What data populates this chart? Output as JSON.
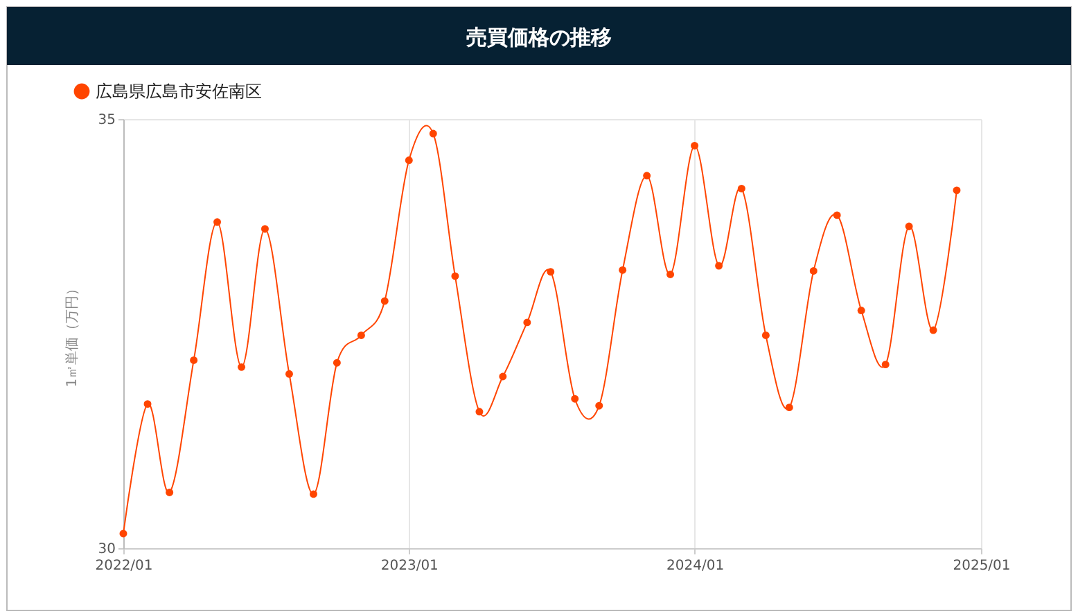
{
  "chart_data": {
    "type": "line",
    "title": "売買価格の推移",
    "ylabel": "1㎡単価（万円）",
    "x": [
      "2022-01",
      "2022-02",
      "2022-03",
      "2022-04",
      "2022-05",
      "2022-06",
      "2022-07",
      "2022-08",
      "2022-09",
      "2022-10",
      "2022-11",
      "2022-12",
      "2023-01",
      "2023-02",
      "2023-03",
      "2023-04",
      "2023-05",
      "2023-06",
      "2023-07",
      "2023-08",
      "2023-09",
      "2023-10",
      "2023-11",
      "2023-12",
      "2024-01",
      "2024-02",
      "2024-03",
      "2024-04",
      "2024-05",
      "2024-06",
      "2024-07",
      "2024-08",
      "2024-09",
      "2024-10",
      "2024-11",
      "2024-12"
    ],
    "series": [
      {
        "name": "広島県広島市安佐南区",
        "color": "#ff4500",
        "values": [
          30.17,
          31.68,
          30.65,
          32.19,
          33.8,
          32.11,
          33.72,
          32.03,
          30.63,
          32.16,
          32.48,
          32.88,
          34.52,
          34.83,
          33.17,
          31.59,
          32.0,
          32.63,
          33.22,
          31.74,
          31.66,
          33.24,
          34.34,
          33.19,
          34.69,
          33.29,
          34.19,
          32.48,
          31.64,
          33.23,
          33.88,
          32.77,
          32.14,
          33.75,
          32.54,
          34.17
        ]
      }
    ],
    "xlim": [
      "2022-01",
      "2025-01"
    ],
    "xticks": [
      {
        "value": "2022-01",
        "label": "2022/01"
      },
      {
        "value": "2023-01",
        "label": "2023/01"
      },
      {
        "value": "2024-01",
        "label": "2024/01"
      },
      {
        "value": "2025-01",
        "label": "2025/01"
      }
    ],
    "ylim": [
      30,
      35
    ],
    "yticks": [
      30,
      35
    ],
    "grid": true,
    "legend": "top left",
    "marker": "circle",
    "line_style": "solid"
  }
}
